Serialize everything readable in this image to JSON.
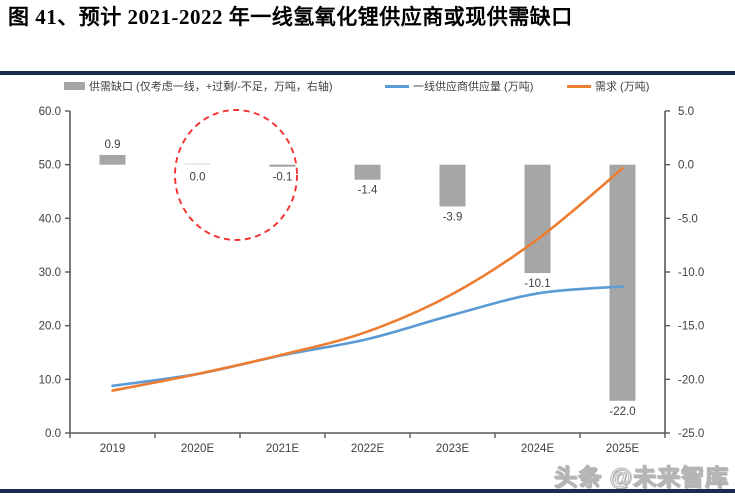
{
  "title": "图 41、预计 2021-2022 年一线氢氧化锂供应商或现供需缺口",
  "watermark": "头条 @未来智库",
  "colors": {
    "rule_navy": "#1b2a50",
    "bar_gray": "#a6a6a6",
    "supply_blue": "#5b9bd5",
    "demand_orange": "#ed7d31",
    "highlight_red": "#f4302f",
    "axis": "#595959",
    "label": "#404040"
  },
  "chart_data": {
    "type": "combo (bar + line)",
    "categories": [
      "2019",
      "2020E",
      "2021E",
      "2022E",
      "2023E",
      "2024E",
      "2025E"
    ],
    "series": [
      {
        "name": "供需缺口 (仅考虑一线，+过剩/-不足，万吨，右轴)",
        "type": "bar",
        "axis": "right",
        "color": "#a6a6a6",
        "values": [
          0.9,
          0.0,
          -0.1,
          -1.4,
          -3.9,
          -10.1,
          -22.0
        ],
        "labels": [
          "0.9",
          "0.0",
          "-0.1",
          "-1.4",
          "-3.9",
          "-10.1",
          "-22.0"
        ]
      },
      {
        "name": "一线供应商供应量 (万吨)",
        "type": "line",
        "axis": "left",
        "color": "#5b9bd5",
        "values": [
          8.8,
          11.0,
          14.5,
          17.5,
          22.0,
          26.0,
          27.3
        ]
      },
      {
        "name": "需求 (万吨)",
        "type": "line",
        "axis": "left",
        "color": "#ed7d31",
        "values": [
          7.9,
          11.0,
          14.6,
          18.9,
          25.9,
          36.1,
          49.3
        ]
      }
    ],
    "left_axis": {
      "min": 0,
      "max": 60,
      "step": 10
    },
    "right_axis": {
      "min": -25,
      "max": 5,
      "step": 5
    },
    "grid": false,
    "legend_position": "top",
    "annotation": {
      "shape": "dashed-circle",
      "highlights": [
        "2020E",
        "2021E"
      ]
    }
  }
}
